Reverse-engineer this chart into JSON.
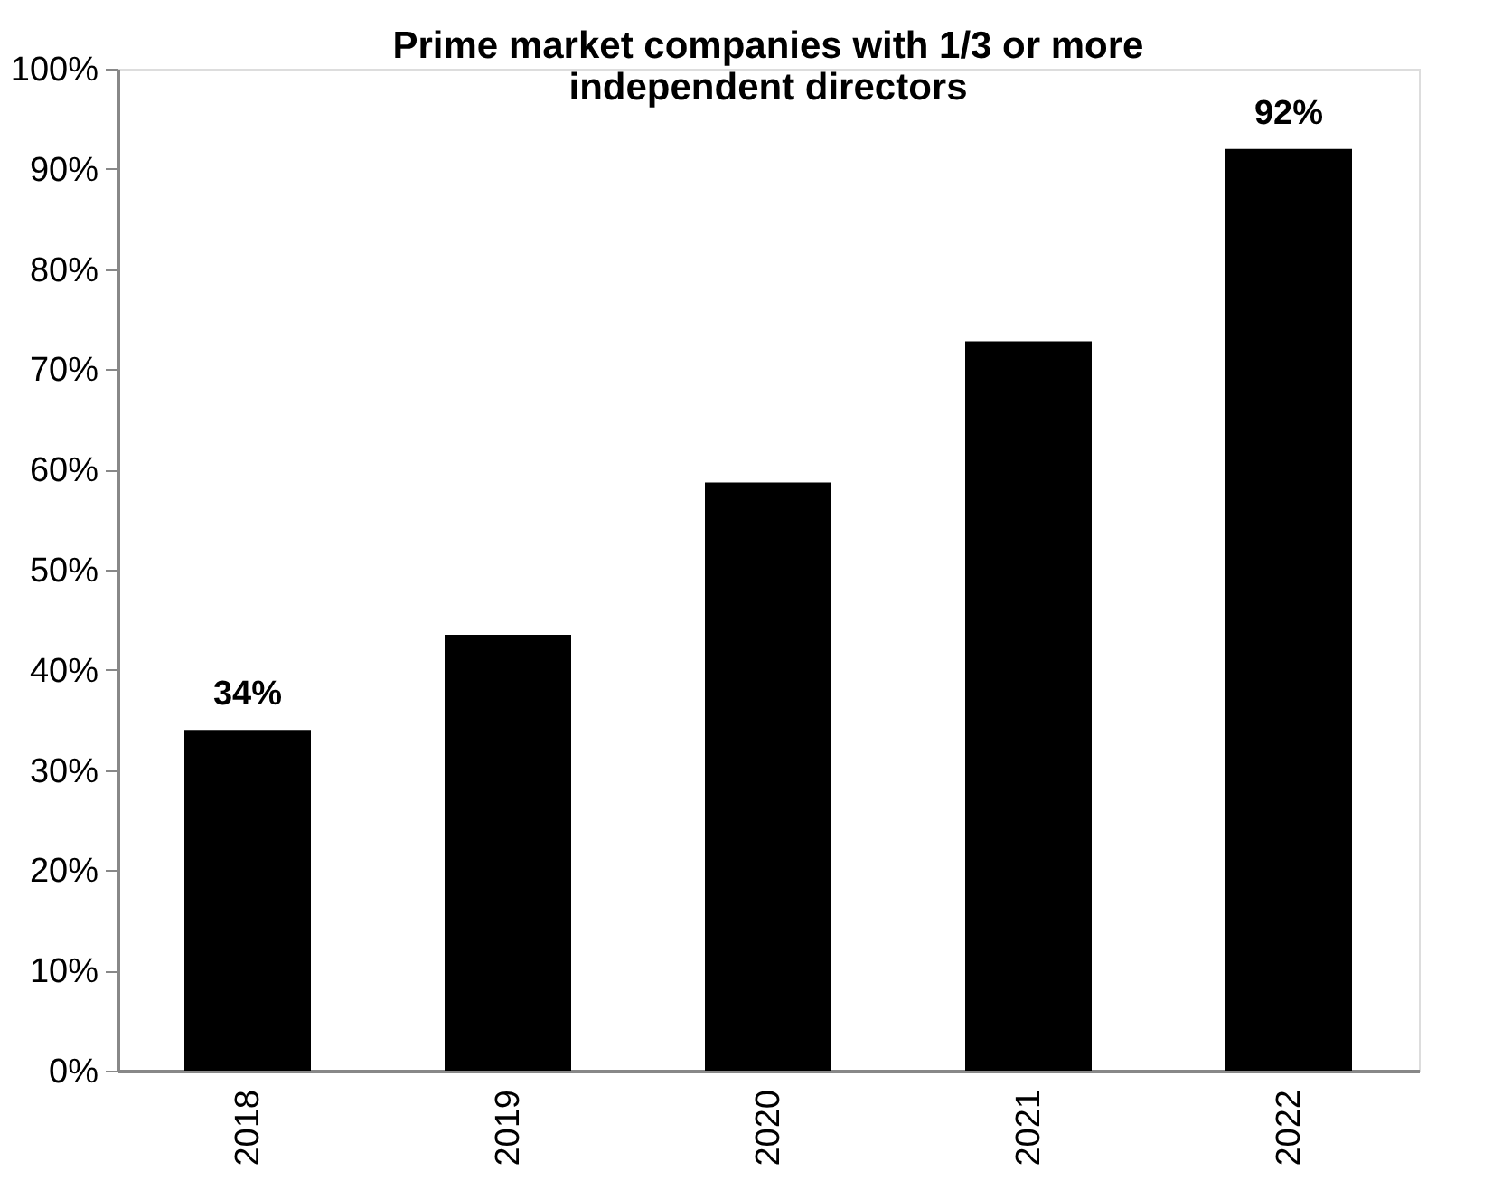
{
  "chart_data": {
    "type": "bar",
    "title": "Prime market companies with 1/3 or more\nindependent directors",
    "categories": [
      "2018",
      "2019",
      "2020",
      "2021",
      "2022"
    ],
    "values": [
      34,
      43.5,
      58.7,
      72.8,
      92
    ],
    "value_labels": [
      "34%",
      null,
      null,
      null,
      "92%"
    ],
    "color": "#000000",
    "ylim": [
      0,
      100
    ],
    "yticks": [
      {
        "value": 0,
        "label": "0%"
      },
      {
        "value": 10,
        "label": "10%"
      },
      {
        "value": 20,
        "label": "20%"
      },
      {
        "value": 30,
        "label": "30%"
      },
      {
        "value": 40,
        "label": "40%"
      },
      {
        "value": 50,
        "label": "50%"
      },
      {
        "value": 60,
        "label": "60%"
      },
      {
        "value": 70,
        "label": "70%"
      },
      {
        "value": 80,
        "label": "80%"
      },
      {
        "value": 90,
        "label": "90%"
      },
      {
        "value": 100,
        "label": "100%"
      }
    ],
    "grid": false
  }
}
